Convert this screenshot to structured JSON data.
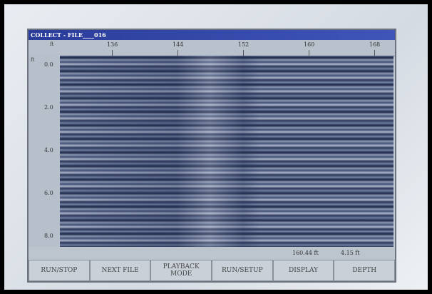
{
  "screen": {
    "title": "COLLECT - FILE____016",
    "top_axis": {
      "unit": "ft",
      "ticks": [
        "136",
        "144",
        "152",
        "160",
        "168"
      ]
    },
    "left_axis": {
      "unit": "ft",
      "ticks": [
        "0.0",
        "2.0",
        "4.0",
        "6.0",
        "8.0"
      ]
    },
    "status": [
      "160.44 ft",
      "4.15 ft"
    ],
    "buttons": [
      "RUN/STOP",
      "NEXT FILE",
      "PLAYBACK MODE",
      "RUN/SETUP",
      "DISPLAY",
      "DEPTH"
    ]
  }
}
